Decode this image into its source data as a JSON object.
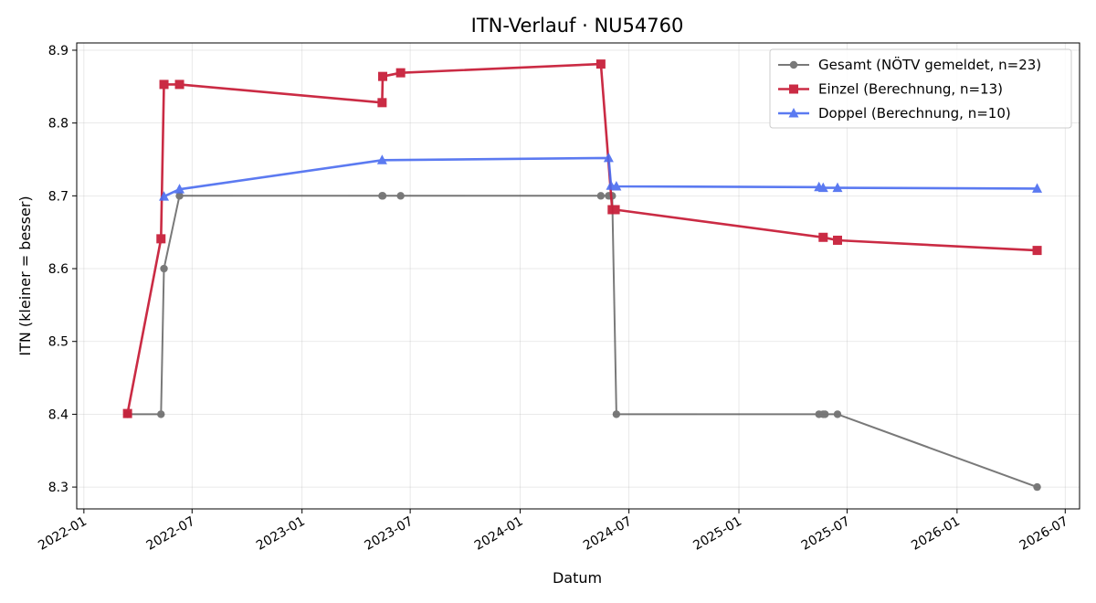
{
  "chart_data": {
    "type": "line",
    "title": "ITN-Verlauf · NU54760",
    "xlabel": "Datum",
    "ylabel": "ITN  (kleiner = besser)",
    "x_is_date": true,
    "xlim": [
      "2021-12-20",
      "2026-07-25"
    ],
    "ylim": [
      8.27,
      8.91
    ],
    "x_ticks": [
      "2022-01",
      "2022-07",
      "2023-01",
      "2023-07",
      "2024-01",
      "2024-07",
      "2025-01",
      "2025-07",
      "2026-01",
      "2026-07"
    ],
    "y_ticks": [
      "8.3",
      "8.4",
      "8.5",
      "8.6",
      "8.7",
      "8.8",
      "8.9"
    ],
    "grid": true,
    "legend_position": "upper-right",
    "series": [
      {
        "name": "Gesamt (NÖTV gemeldet, n=23)",
        "color": "#4d4d4d",
        "marker": "circle",
        "points": [
          [
            "2022-03-15",
            8.4
          ],
          [
            "2022-05-10",
            8.4
          ],
          [
            "2022-05-15",
            8.6
          ],
          [
            "2022-06-10",
            8.7
          ],
          [
            "2023-05-15",
            8.7
          ],
          [
            "2023-05-16",
            8.7
          ],
          [
            "2023-06-15",
            8.7
          ],
          [
            "2024-05-15",
            8.7
          ],
          [
            "2024-05-28",
            8.7
          ],
          [
            "2024-06-01",
            8.7
          ],
          [
            "2024-06-03",
            8.7
          ],
          [
            "2024-06-10",
            8.4
          ],
          [
            "2025-05-15",
            8.4
          ],
          [
            "2025-05-22",
            8.4
          ],
          [
            "2025-05-25",
            8.4
          ],
          [
            "2025-06-15",
            8.4
          ],
          [
            "2026-05-15",
            8.3
          ]
        ]
      },
      {
        "name": "Einzel (Berechnung, n=13)",
        "color": "#c8203a",
        "marker": "square",
        "points": [
          [
            "2022-03-15",
            8.401
          ],
          [
            "2022-05-10",
            8.641
          ],
          [
            "2022-05-15",
            8.853
          ],
          [
            "2022-06-10",
            8.853
          ],
          [
            "2023-05-15",
            8.828
          ],
          [
            "2023-05-16",
            8.864
          ],
          [
            "2023-06-15",
            8.869
          ],
          [
            "2024-05-15",
            8.881
          ],
          [
            "2024-06-03",
            8.681
          ],
          [
            "2024-06-08",
            8.681
          ],
          [
            "2025-05-22",
            8.643
          ],
          [
            "2025-06-15",
            8.639
          ],
          [
            "2026-05-15",
            8.625
          ]
        ]
      },
      {
        "name": "Doppel (Berechnung, n=10)",
        "color": "#4a6cf0",
        "marker": "triangle",
        "points": [
          [
            "2022-05-15",
            8.699
          ],
          [
            "2022-06-10",
            8.709
          ],
          [
            "2023-05-15",
            8.749
          ],
          [
            "2024-05-28",
            8.752
          ],
          [
            "2024-06-01",
            8.714
          ],
          [
            "2024-06-10",
            8.713
          ],
          [
            "2025-05-15",
            8.712
          ],
          [
            "2025-05-22",
            8.711
          ],
          [
            "2025-06-15",
            8.711
          ],
          [
            "2026-05-15",
            8.71
          ]
        ]
      }
    ]
  }
}
